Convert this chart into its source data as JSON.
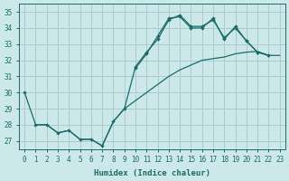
{
  "xlabel": "Humidex (Indice chaleur)",
  "xlim": [
    -0.5,
    23.5
  ],
  "ylim": [
    26.5,
    35.5
  ],
  "xticks": [
    0,
    1,
    2,
    3,
    4,
    5,
    6,
    7,
    8,
    9,
    10,
    11,
    12,
    13,
    14,
    15,
    16,
    17,
    18,
    19,
    20,
    21,
    22,
    23
  ],
  "yticks": [
    27,
    28,
    29,
    30,
    31,
    32,
    33,
    34,
    35
  ],
  "bg_color": "#cce8e8",
  "grid_color": "#aacccc",
  "line_color": "#1a6b6b",
  "line1_x": [
    0,
    1,
    2,
    3,
    4,
    5,
    6,
    7,
    8,
    9,
    10,
    11,
    12,
    13,
    14,
    15,
    16,
    17,
    18,
    19,
    20,
    21,
    22
  ],
  "line1_y": [
    30.0,
    28.0,
    28.0,
    27.5,
    27.65,
    27.1,
    27.1,
    26.7,
    28.2,
    29.0,
    31.6,
    32.5,
    33.3,
    34.5,
    34.8,
    34.1,
    34.1,
    34.5,
    33.4,
    34.0,
    33.2,
    32.5,
    32.3
  ],
  "line2_x": [
    10,
    11,
    12,
    13,
    14,
    15,
    16,
    17,
    18,
    19,
    20,
    21,
    22
  ],
  "line2_y": [
    31.5,
    32.4,
    33.5,
    34.6,
    34.7,
    34.0,
    34.0,
    34.6,
    33.3,
    34.1,
    33.2,
    32.5,
    32.3
  ],
  "line3_x": [
    1,
    2,
    3,
    4,
    5,
    6,
    7,
    8,
    9,
    10,
    11,
    12,
    13,
    14,
    15,
    16,
    17,
    18,
    19,
    20,
    21,
    22,
    23
  ],
  "line3_y": [
    28.0,
    28.0,
    27.5,
    27.65,
    27.1,
    27.1,
    26.7,
    28.2,
    29.0,
    29.5,
    30.0,
    30.5,
    31.0,
    31.4,
    31.7,
    32.0,
    32.1,
    32.2,
    32.4,
    32.5,
    32.55,
    32.3,
    32.3
  ]
}
